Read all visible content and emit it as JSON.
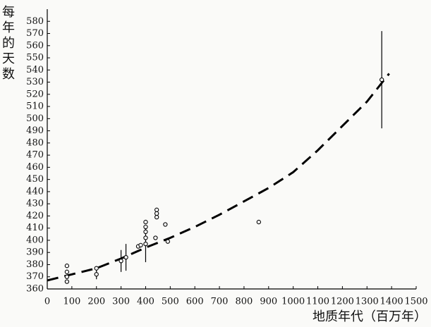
{
  "chart_data": {
    "type": "scatter",
    "x_label": "地质年代（百万年）",
    "y_label": "每年的天数",
    "xlim": [
      0,
      1500
    ],
    "xticks": [
      0,
      100,
      200,
      300,
      400,
      500,
      600,
      700,
      800,
      900,
      1000,
      1100,
      1200,
      1300,
      1400,
      1500
    ],
    "ylim": [
      360,
      590
    ],
    "yticks": [
      360,
      370,
      380,
      390,
      400,
      410,
      420,
      430,
      440,
      450,
      460,
      470,
      480,
      490,
      500,
      510,
      520,
      530,
      540,
      550,
      560,
      570,
      580
    ],
    "color": "#000000",
    "points": {
      "x": [
        80,
        80,
        80,
        80,
        200,
        200,
        300,
        320,
        370,
        380,
        400,
        400,
        400,
        400,
        400,
        440,
        445,
        445,
        445,
        480,
        490,
        860,
        1360
      ],
      "values": [
        379,
        374,
        370,
        366,
        377,
        372,
        383,
        386,
        395,
        396,
        397,
        402,
        407,
        411,
        415,
        402,
        425,
        422,
        419,
        413,
        399,
        415,
        532
      ]
    },
    "error_bars": {
      "x": [
        200,
        300,
        320,
        400,
        1360
      ],
      "values": [
        372,
        383,
        386,
        397,
        532
      ],
      "errors": [
        4,
        9,
        11,
        15,
        40
      ]
    },
    "fit": {
      "x": [
        0,
        100,
        200,
        300,
        400,
        500,
        600,
        700,
        800,
        900,
        1000,
        1100,
        1200,
        1300,
        1390
      ],
      "values": [
        367,
        372,
        377,
        385,
        394,
        402,
        411,
        421,
        432,
        443,
        456,
        474,
        494,
        514,
        537
      ]
    }
  }
}
